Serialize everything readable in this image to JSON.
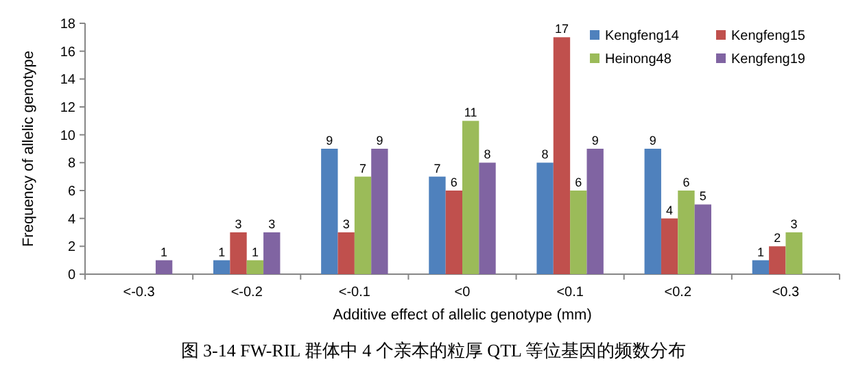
{
  "chart_data": {
    "type": "bar",
    "title": "图 3-14 FW-RIL 群体中 4 个亲本的粒厚 QTL 等位基因的频数分布",
    "xlabel": "Additive effect of allelic genotype (mm)",
    "ylabel": "Frequency of allelic genotype",
    "categories": [
      "<-0.3",
      "<-0.2",
      "<-0.1",
      "<0",
      "<0.1",
      "<0.2",
      "<0.3"
    ],
    "series": [
      {
        "name": "Kengfeng14",
        "color": "#4f81bd",
        "values": [
          null,
          1,
          9,
          7,
          8,
          9,
          1
        ]
      },
      {
        "name": "Kengfeng15",
        "color": "#c0504d",
        "values": [
          null,
          3,
          3,
          6,
          17,
          4,
          2
        ]
      },
      {
        "name": "Heinong48",
        "color": "#9bbb59",
        "values": [
          null,
          1,
          7,
          11,
          6,
          6,
          3
        ]
      },
      {
        "name": "Kengfeng19",
        "color": "#8064a2",
        "values": [
          1,
          3,
          9,
          8,
          9,
          5,
          null
        ]
      }
    ],
    "ylim": [
      0,
      18
    ],
    "yticks": [
      0,
      2,
      4,
      6,
      8,
      10,
      12,
      14,
      16,
      18
    ],
    "legend": "top right",
    "data_labels": true
  }
}
